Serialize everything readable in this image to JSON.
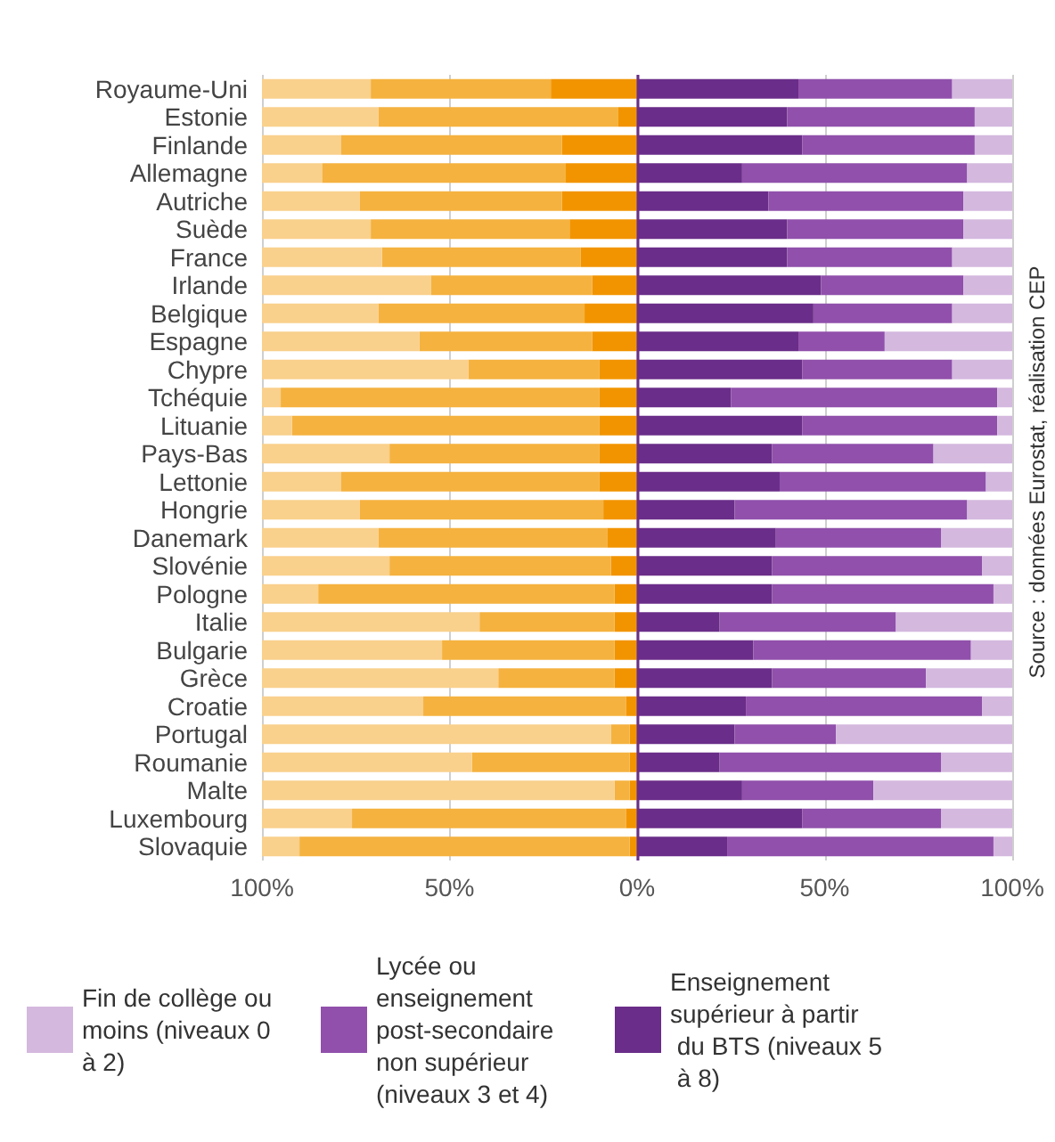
{
  "chart_data": {
    "type": "bar",
    "orientation": "horizontal",
    "stacked": true,
    "categories": [
      "Royaume-Uni",
      "Estonie",
      "Finlande",
      "Allemagne",
      "Autriche",
      "Suède",
      "France",
      "Irlande",
      "Belgique",
      "Espagne",
      "Chypre",
      "Tchéquie",
      "Lituanie",
      "Pays-Bas",
      "Lettonie",
      "Hongrie",
      "Danemark",
      "Slovénie",
      "Pologne",
      "Italie",
      "Bulgarie",
      "Grèce",
      "Croatie",
      "Portugal",
      "Roumanie",
      "Malte",
      "Luxembourg",
      "Slovaquie"
    ],
    "series": [
      {
        "color": "#f29400",
        "values": [
          -23,
          -5,
          -20,
          -19,
          -20,
          -18,
          -15,
          -12,
          -14,
          -12,
          -10,
          -10,
          -10,
          -10,
          -10,
          -9,
          -8,
          -7,
          -6,
          -6,
          -6,
          -6,
          -3,
          -2,
          -2,
          -2,
          -3,
          -2
        ]
      },
      {
        "color": "#f5b23f",
        "values": [
          -48,
          -64,
          -59,
          -65,
          -54,
          -53,
          -53,
          -43,
          -55,
          -46,
          -35,
          -85,
          -82,
          -56,
          -69,
          -65,
          -61,
          -59,
          -79,
          -36,
          -46,
          -31,
          -54,
          -5,
          -42,
          -4,
          -73,
          -88
        ]
      },
      {
        "color": "#f9d08c",
        "values": [
          -29,
          -31,
          -21,
          -16,
          -26,
          -29,
          -32,
          -45,
          -31,
          -42,
          -55,
          -5,
          -8,
          -34,
          -21,
          -26,
          -31,
          -34,
          -15,
          -58,
          -48,
          -63,
          -43,
          -93,
          -56,
          -94,
          -24,
          -10
        ]
      },
      {
        "name": "Enseignement supérieur à partir du BTS (niveaux 5 à 8)",
        "color": "#6a2d89",
        "values": [
          43,
          40,
          44,
          28,
          35,
          40,
          40,
          49,
          47,
          43,
          44,
          25,
          44,
          36,
          38,
          26,
          37,
          36,
          36,
          22,
          31,
          36,
          29,
          26,
          22,
          28,
          44,
          24
        ]
      },
      {
        "name": "Lycée ou enseignement post-secondaire non supérieur (niveaux 3 et 4)",
        "color": "#9050ab",
        "values": [
          41,
          50,
          46,
          60,
          52,
          47,
          44,
          38,
          37,
          23,
          40,
          71,
          52,
          43,
          55,
          62,
          44,
          56,
          59,
          47,
          58,
          41,
          63,
          27,
          59,
          35,
          37,
          71
        ]
      },
      {
        "name": "Fin de collège ou moins (niveaux 0 à 2)",
        "color": "#d4b8de",
        "values": [
          16,
          10,
          10,
          12,
          13,
          13,
          16,
          13,
          16,
          34,
          16,
          4,
          4,
          21,
          7,
          12,
          19,
          8,
          5,
          31,
          11,
          23,
          8,
          47,
          19,
          37,
          19,
          5
        ]
      }
    ],
    "xlim": [
      -100,
      100
    ],
    "xticks": [
      {
        "value": -100,
        "label": "100%"
      },
      {
        "value": -50,
        "label": "50%"
      },
      {
        "value": 0,
        "label": "0%"
      },
      {
        "value": 50,
        "label": "50%"
      },
      {
        "value": 100,
        "label": "100%"
      }
    ],
    "grid": "x",
    "legend": "bottom",
    "ref_lines": [
      {
        "axis": "x",
        "value": 0,
        "color": "#6a2d89"
      }
    ],
    "annotations": [
      "Source : données Eurostat, réalisation CEP"
    ]
  }
}
